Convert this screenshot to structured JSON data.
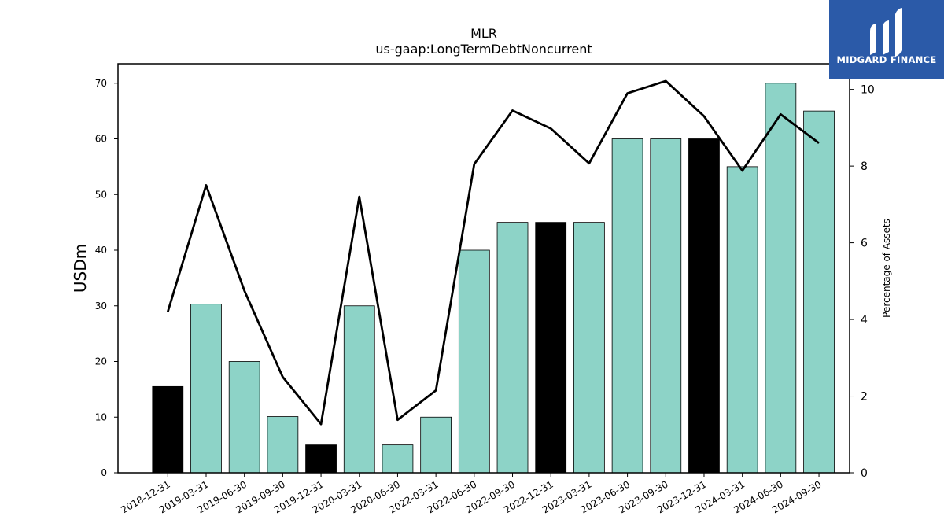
{
  "brand": {
    "name": "MIDGARD FINANCE",
    "bg_color": "#2b5aa8",
    "icon": "midgard-logo-icon"
  },
  "chart_data": {
    "type": "bar",
    "title": "MLR",
    "subtitle": "us-gaap:LongTermDebtNoncurrent",
    "ylabel": "USDm",
    "y2label": "Percentage of Assets",
    "ylim": [
      0,
      73.5
    ],
    "y2lim": [
      0,
      10.67
    ],
    "yticks": [
      0,
      10,
      20,
      30,
      40,
      50,
      60,
      70
    ],
    "y2ticks": [
      0,
      2,
      4,
      6,
      8,
      10
    ],
    "categories": [
      "2018-12-31",
      "2019-03-31",
      "2019-06-30",
      "2019-09-30",
      "2019-12-31",
      "2020-03-31",
      "2020-06-30",
      "2022-03-31",
      "2022-06-30",
      "2022-09-30",
      "2022-12-31",
      "2023-03-31",
      "2023-06-30",
      "2023-09-30",
      "2023-12-31",
      "2024-03-31",
      "2024-06-30",
      "2024-09-30"
    ],
    "bar_series": {
      "values": [
        15.5,
        30.3,
        20.0,
        10.1,
        5.0,
        30.0,
        5.0,
        10.0,
        40.0,
        45.0,
        45.0,
        45.0,
        60.0,
        60.0,
        60.0,
        55.0,
        70.0,
        65.0
      ],
      "highlight": [
        true,
        false,
        false,
        false,
        true,
        false,
        false,
        false,
        false,
        false,
        true,
        false,
        false,
        false,
        true,
        false,
        false,
        false
      ]
    },
    "line_series": {
      "axis": "right",
      "values": [
        4.2,
        7.5,
        4.75,
        2.5,
        1.27,
        7.2,
        1.38,
        2.15,
        8.05,
        9.45,
        8.98,
        8.07,
        9.9,
        10.22,
        9.3,
        7.88,
        9.35,
        8.6
      ]
    },
    "colors": {
      "bar": "#8dd3c7",
      "bar_highlight": "#000000",
      "line": "#000000"
    },
    "grid": false,
    "legend": "none"
  }
}
